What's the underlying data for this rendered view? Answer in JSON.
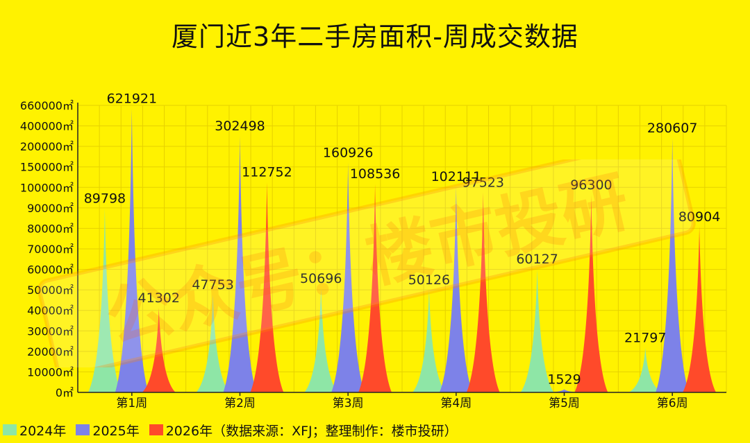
{
  "title": "厦门近3年二手房面积-周成交数据",
  "legend": [
    {
      "label": "2024年",
      "color": "#8ee6a6"
    },
    {
      "label": "2025年",
      "color": "#7d82e8"
    },
    {
      "label": "2026年（数据来源：XFJ；整理制作：楼市投研）",
      "color": "#ff4a2a"
    }
  ],
  "watermark": "公众号：楼市投研",
  "chart_data": {
    "type": "area",
    "categories": [
      "第1周",
      "第2周",
      "第3周",
      "第4周",
      "第5周",
      "第6周"
    ],
    "y_ticks": [
      "0㎡",
      "10000㎡",
      "20000㎡",
      "30000㎡",
      "40000㎡",
      "50000㎡",
      "60000㎡",
      "70000㎡",
      "80000㎡",
      "90000㎡",
      "100000㎡",
      "150000㎡",
      "200000㎡",
      "400000㎡",
      "660000㎡"
    ],
    "y_tick_values": [
      0,
      10000,
      20000,
      30000,
      40000,
      50000,
      60000,
      70000,
      80000,
      90000,
      100000,
      150000,
      200000,
      400000,
      660000
    ],
    "series": [
      {
        "name": "2024年",
        "color": "#8ee6a6",
        "values": [
          89798,
          47753,
          50696,
          50126,
          60127,
          21797
        ]
      },
      {
        "name": "2025年",
        "color": "#7d82e8",
        "values": [
          621921,
          302498,
          160926,
          102111,
          1529,
          280607
        ]
      },
      {
        "name": "2026年",
        "color": "#ff4a2a",
        "values": [
          41302,
          112752,
          108536,
          97523,
          96300,
          80904
        ]
      }
    ],
    "grid": true,
    "legend_position": "bottom"
  }
}
